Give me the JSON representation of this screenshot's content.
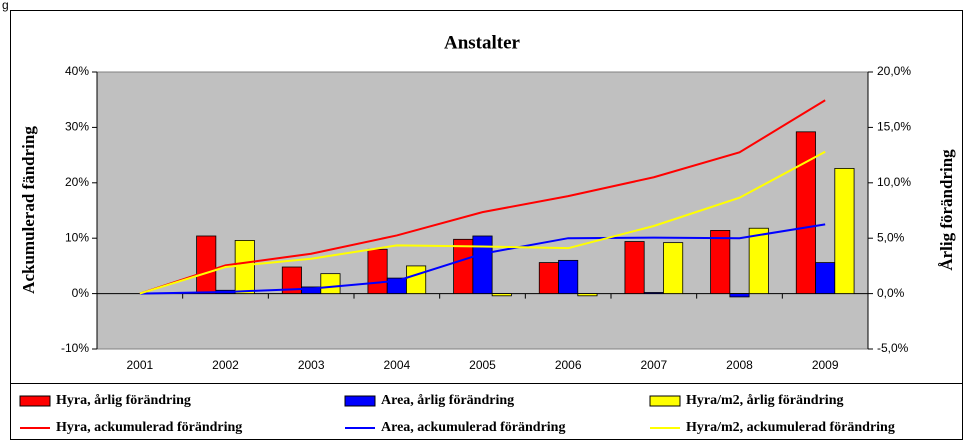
{
  "caption": "g",
  "chart_data": {
    "type": "combo",
    "title": "Anstalter",
    "ylabel": "Ackumulerad fändring",
    "y2label": "Årlig förändring",
    "categories": [
      "2001",
      "2002",
      "2003",
      "2004",
      "2005",
      "2006",
      "2007",
      "2008",
      "2009"
    ],
    "ylim": [
      -10,
      40
    ],
    "yticks": [
      {
        "value": -10,
        "label": "-10%"
      },
      {
        "value": 0,
        "label": "0%"
      },
      {
        "value": 10,
        "label": "10%"
      },
      {
        "value": 20,
        "label": "20%"
      },
      {
        "value": 30,
        "label": "30%"
      },
      {
        "value": 40,
        "label": "40%"
      }
    ],
    "y2lim": [
      -5,
      20
    ],
    "y2ticks": [
      {
        "value": -5,
        "label": "-5,0%"
      },
      {
        "value": 0,
        "label": "0,0%"
      },
      {
        "value": 5,
        "label": "5,0%"
      },
      {
        "value": 10,
        "label": "10,0%"
      },
      {
        "value": 15,
        "label": "15,0%"
      },
      {
        "value": 20,
        "label": "20,0%"
      }
    ],
    "plot_background": "#c0c0c0",
    "series": [
      {
        "name": "Hyra, årlig förändring",
        "type": "bar",
        "axis": "y2",
        "color": "#ff0000",
        "values": [
          null,
          5.2,
          2.4,
          4.0,
          4.9,
          2.8,
          4.7,
          5.7,
          14.6
        ]
      },
      {
        "name": "Area, årlig förändring",
        "type": "bar",
        "axis": "y2",
        "color": "#0000ff",
        "values": [
          null,
          0.3,
          0.6,
          1.4,
          5.2,
          3.0,
          0.1,
          -0.3,
          2.8
        ]
      },
      {
        "name": "Hyra/m2, årlig förändring",
        "type": "bar",
        "axis": "y2",
        "color": "#ffff00",
        "values": [
          null,
          4.8,
          1.8,
          2.5,
          -0.2,
          -0.2,
          4.6,
          5.9,
          11.3
        ]
      },
      {
        "name": "Hyra, ackumulerad förändring",
        "type": "line",
        "color": "#ff0000",
        "values": [
          0,
          5.1,
          7.2,
          10.5,
          14.7,
          17.6,
          21.0,
          25.5,
          34.9
        ]
      },
      {
        "name": "Area, ackumulerad förändring",
        "type": "line",
        "color": "#0000ff",
        "values": [
          0,
          0.3,
          0.9,
          2.3,
          7.2,
          10.0,
          10.1,
          10.0,
          12.5
        ]
      },
      {
        "name": "Hyra/m2, ackumulerad förändring",
        "type": "line",
        "color": "#ffff00",
        "values": [
          0,
          4.8,
          6.3,
          8.7,
          8.5,
          8.2,
          12.2,
          17.3,
          25.6
        ]
      }
    ]
  }
}
